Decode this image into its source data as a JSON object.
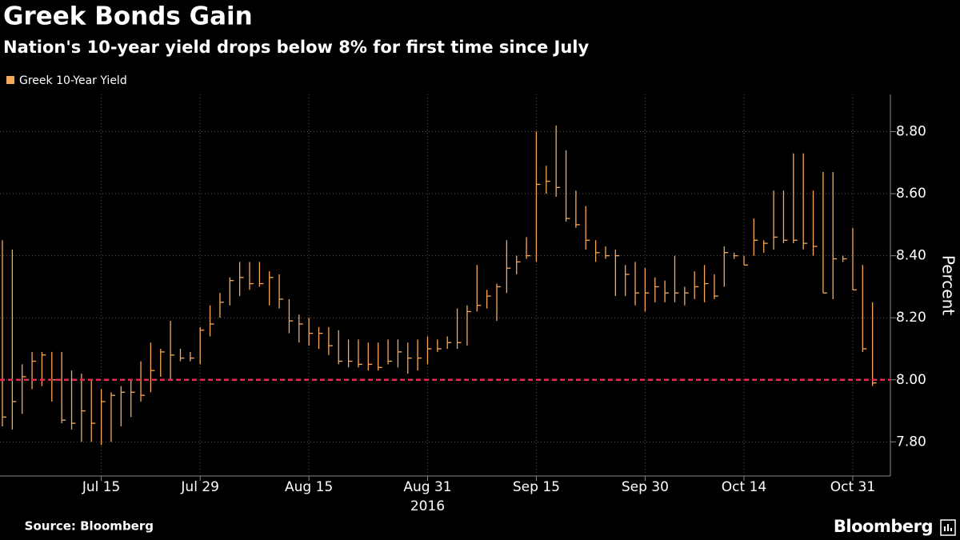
{
  "chart_data": {
    "type": "ohlc",
    "title": "Greek Bonds Gain",
    "subtitle": "Nation's 10-year yield drops below 8% for first time since July",
    "x": [
      "2016-07-01",
      "2016-07-04",
      "2016-07-05",
      "2016-07-06",
      "2016-07-07",
      "2016-07-08",
      "2016-07-11",
      "2016-07-12",
      "2016-07-13",
      "2016-07-14",
      "2016-07-15",
      "2016-07-18",
      "2016-07-19",
      "2016-07-20",
      "2016-07-21",
      "2016-07-22",
      "2016-07-25",
      "2016-07-26",
      "2016-07-27",
      "2016-07-28",
      "2016-07-29",
      "2016-08-01",
      "2016-08-02",
      "2016-08-03",
      "2016-08-04",
      "2016-08-05",
      "2016-08-08",
      "2016-08-09",
      "2016-08-10",
      "2016-08-11",
      "2016-08-12",
      "2016-08-15",
      "2016-08-16",
      "2016-08-17",
      "2016-08-18",
      "2016-08-19",
      "2016-08-22",
      "2016-08-23",
      "2016-08-24",
      "2016-08-25",
      "2016-08-26",
      "2016-08-29",
      "2016-08-30",
      "2016-08-31",
      "2016-09-01",
      "2016-09-02",
      "2016-09-05",
      "2016-09-06",
      "2016-09-07",
      "2016-09-08",
      "2016-09-09",
      "2016-09-12",
      "2016-09-13",
      "2016-09-14",
      "2016-09-15",
      "2016-09-16",
      "2016-09-19",
      "2016-09-20",
      "2016-09-21",
      "2016-09-22",
      "2016-09-23",
      "2016-09-26",
      "2016-09-27",
      "2016-09-28",
      "2016-09-29",
      "2016-09-30",
      "2016-10-03",
      "2016-10-04",
      "2016-10-05",
      "2016-10-06",
      "2016-10-07",
      "2016-10-10",
      "2016-10-11",
      "2016-10-12",
      "2016-10-13",
      "2016-10-14",
      "2016-10-17",
      "2016-10-18",
      "2016-10-19",
      "2016-10-20",
      "2016-10-21",
      "2016-10-24",
      "2016-10-25",
      "2016-10-26",
      "2016-10-27",
      "2016-10-28",
      "2016-10-31",
      "2016-11-01",
      "2016-11-02"
    ],
    "series": [
      {
        "name": "Greek 10-Year Yield",
        "color": "#f9a857",
        "high": [
          8.45,
          8.42,
          8.05,
          8.09,
          8.09,
          8.09,
          8.09,
          8.03,
          8.02,
          8.0,
          7.97,
          7.96,
          7.98,
          8.0,
          8.06,
          8.12,
          8.1,
          8.19,
          8.1,
          8.09,
          8.17,
          8.24,
          8.28,
          8.33,
          8.38,
          8.38,
          8.38,
          8.35,
          8.34,
          8.26,
          8.21,
          8.2,
          8.17,
          8.17,
          8.16,
          8.13,
          8.13,
          8.12,
          8.12,
          8.13,
          8.13,
          8.12,
          8.13,
          8.14,
          8.13,
          8.14,
          8.23,
          8.24,
          8.37,
          8.29,
          8.31,
          8.45,
          8.4,
          8.46,
          8.8,
          8.69,
          8.82,
          8.74,
          8.61,
          8.56,
          8.45,
          8.43,
          8.42,
          8.37,
          8.38,
          8.36,
          8.33,
          8.32,
          8.4,
          8.3,
          8.35,
          8.37,
          8.34,
          8.43,
          8.41,
          8.4,
          8.52,
          8.45,
          8.61,
          8.61,
          8.73,
          8.73,
          8.61,
          8.67,
          8.67,
          8.4,
          8.49,
          8.37,
          8.25
        ],
        "low": [
          7.85,
          7.84,
          7.89,
          7.97,
          7.98,
          7.93,
          7.86,
          7.84,
          7.8,
          7.8,
          7.79,
          7.8,
          7.85,
          7.88,
          7.93,
          7.96,
          8.01,
          8.0,
          8.06,
          8.06,
          8.05,
          8.14,
          8.2,
          8.24,
          8.27,
          8.29,
          8.3,
          8.24,
          8.23,
          8.15,
          8.12,
          8.11,
          8.1,
          8.08,
          8.05,
          8.04,
          8.04,
          8.03,
          8.03,
          8.05,
          8.04,
          8.02,
          8.03,
          8.05,
          8.09,
          8.1,
          8.1,
          8.11,
          8.22,
          8.23,
          8.19,
          8.28,
          8.34,
          8.39,
          8.38,
          8.6,
          8.59,
          8.51,
          8.49,
          8.42,
          8.38,
          8.39,
          8.27,
          8.27,
          8.24,
          8.22,
          8.25,
          8.25,
          8.25,
          8.24,
          8.26,
          8.25,
          8.26,
          8.3,
          8.39,
          8.37,
          8.4,
          8.41,
          8.42,
          8.44,
          8.44,
          8.42,
          8.4,
          8.28,
          8.26,
          8.38,
          8.29,
          8.09,
          7.98
        ],
        "close": [
          7.88,
          7.93,
          8.01,
          8.06,
          8.08,
          8.0,
          7.87,
          7.86,
          7.9,
          7.86,
          7.93,
          7.95,
          7.96,
          7.96,
          7.95,
          8.03,
          8.09,
          8.08,
          8.07,
          8.07,
          8.16,
          8.18,
          8.25,
          8.32,
          8.33,
          8.31,
          8.31,
          8.33,
          8.26,
          8.19,
          8.18,
          8.15,
          8.15,
          8.11,
          8.06,
          8.06,
          8.05,
          8.05,
          8.04,
          8.06,
          8.09,
          8.07,
          8.07,
          8.1,
          8.1,
          8.12,
          8.12,
          8.22,
          8.24,
          8.27,
          8.3,
          8.36,
          8.38,
          8.4,
          8.63,
          8.64,
          8.62,
          8.52,
          8.5,
          8.45,
          8.41,
          8.4,
          8.4,
          8.34,
          8.28,
          8.28,
          8.3,
          8.28,
          8.28,
          8.28,
          8.3,
          8.31,
          8.27,
          8.41,
          8.4,
          8.37,
          8.45,
          8.44,
          8.46,
          8.45,
          8.45,
          8.44,
          8.43,
          8.28,
          8.39,
          8.39,
          8.29,
          8.1,
          7.99
        ]
      }
    ],
    "legend": "top-left",
    "ylim": [
      7.69,
      8.92
    ],
    "yticks": [
      {
        "value": 7.8,
        "label": "7.80"
      },
      {
        "value": 8.0,
        "label": "8.00"
      },
      {
        "value": 8.2,
        "label": "8.20"
      },
      {
        "value": 8.4,
        "label": "8.40"
      },
      {
        "value": 8.6,
        "label": "8.60"
      },
      {
        "value": 8.8,
        "label": "8.80"
      }
    ],
    "xticks": [
      {
        "value": "2016-07-15",
        "label": "Jul 15"
      },
      {
        "value": "2016-07-29",
        "label": "Jul 29"
      },
      {
        "value": "2016-08-15",
        "label": "Aug 15"
      },
      {
        "value": "2016-08-31",
        "label": "Aug 31"
      },
      {
        "value": "2016-09-15",
        "label": "Sep 15"
      },
      {
        "value": "2016-09-30",
        "label": "Sep 30"
      },
      {
        "value": "2016-10-14",
        "label": "Oct 14"
      },
      {
        "value": "2016-10-31",
        "label": "Oct 31"
      }
    ],
    "year_label": {
      "at": "2016-08-31",
      "text": "2016"
    },
    "ylabel": "Percent",
    "reference_line": {
      "value": 8.0,
      "color": "#e8294f"
    },
    "grid": true,
    "source": "Source: Bloomberg",
    "brand": "Bloomberg"
  }
}
